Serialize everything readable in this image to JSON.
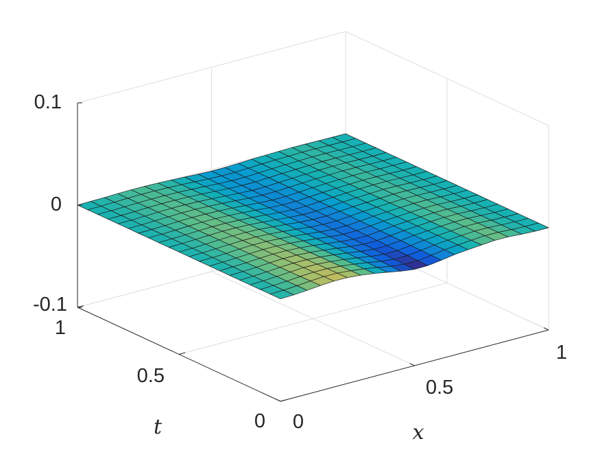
{
  "chart_data": {
    "type": "surface",
    "xlabel": "x",
    "ylabel": "t",
    "zlabel": "",
    "xlim": [
      0,
      1
    ],
    "ylim": [
      0,
      1
    ],
    "zlim": [
      -0.1,
      0.1
    ],
    "x_ticks": [
      0,
      0.5,
      1
    ],
    "x_tick_labels": [
      "0",
      "0.5",
      "1"
    ],
    "y_ticks": [
      0,
      0.5,
      1
    ],
    "y_tick_labels": [
      "0",
      "0.5",
      "1"
    ],
    "z_ticks": [
      -0.1,
      0,
      0.1
    ],
    "z_tick_labels": [
      "-0.1",
      "0",
      "0.1"
    ],
    "grid": true,
    "colormap": "parula",
    "surface": {
      "nx": 20,
      "nt": 20,
      "value_range": [
        -0.0015,
        0.0015
      ],
      "description_of_values": "values near zero; peak in cells of low x, trough at middle x, another peak near high x, decaying toward high t"
    }
  }
}
